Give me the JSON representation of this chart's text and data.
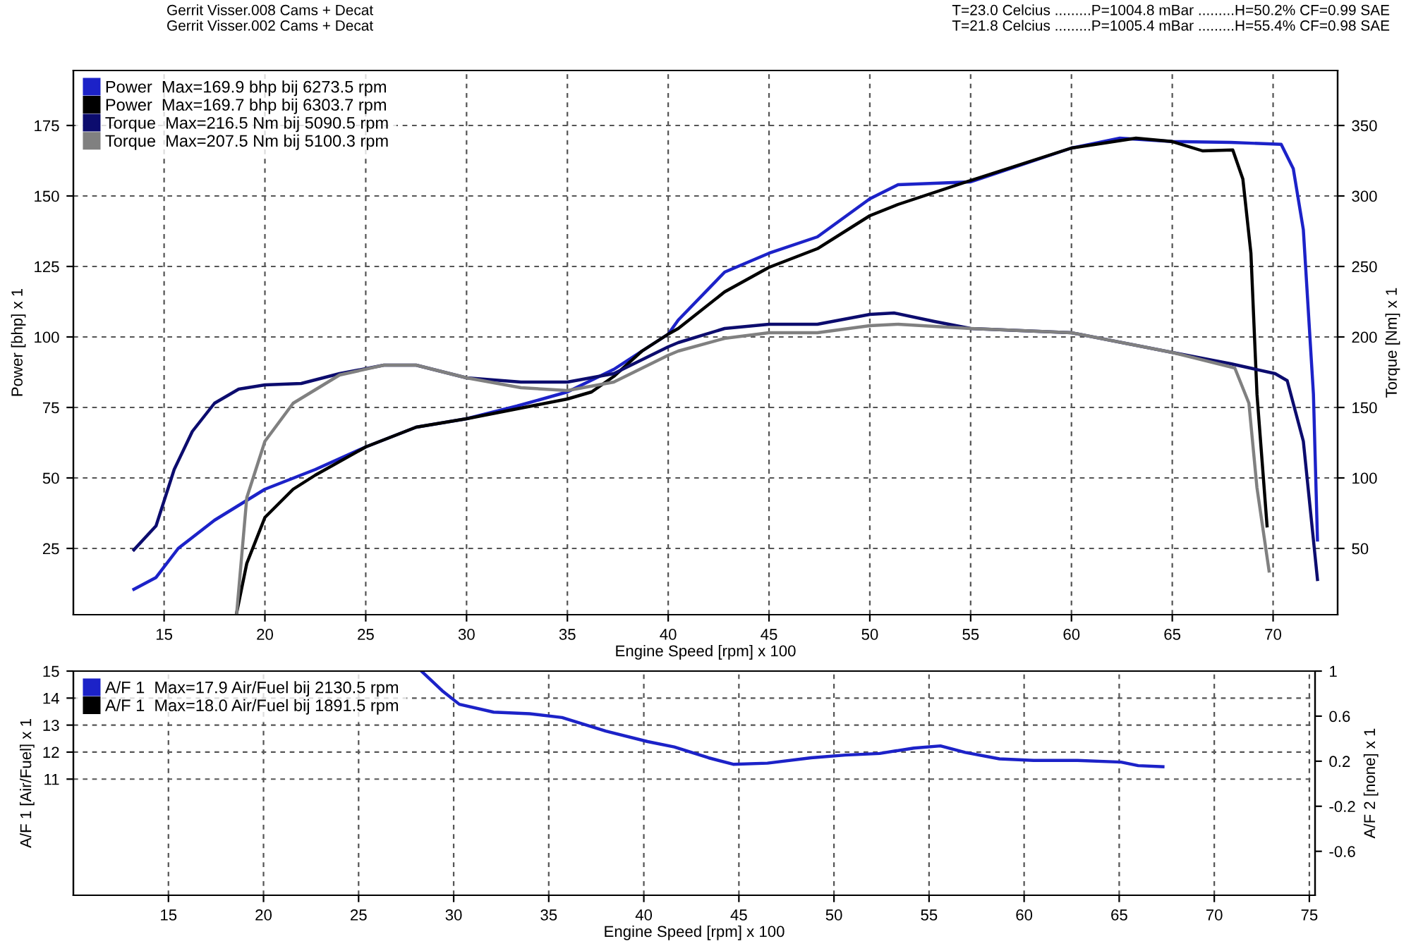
{
  "chart_data": [
    {
      "type": "line",
      "xlabel": "Engine Speed [rpm] x 100",
      "ylabel": "Power [bhp] x 1",
      "y2label": "Torque [Nm] x 1",
      "xlim": [
        10.5,
        73.2
      ],
      "xticks": [
        15,
        20,
        25,
        30,
        35,
        40,
        45,
        50,
        55,
        60,
        65,
        70
      ],
      "ylim": [
        1.5,
        194.5
      ],
      "yticks": [
        25,
        50,
        75,
        100,
        125,
        150,
        175
      ],
      "y2lim": [
        3,
        389
      ],
      "y2ticks": [
        50,
        100,
        150,
        200,
        250,
        300,
        350
      ],
      "grid": true,
      "legend": "top left",
      "annotations": [
        "Gerrit Visser.008 Cams + Decat",
        "Gerrit Visser.002 Cams + Decat",
        "T=23.0 Celcius .........P=1004.8 mBar .........H=50.2% CF=0.99 SAE",
        "T=21.8 Celcius .........P=1005.4 mBar .........H=55.4% CF=0.98 SAE"
      ],
      "series": [
        {
          "name": "Power  Max=169.9 bhp bij 6273.5 rpm",
          "color": "#1c22c8",
          "x": [
            13.5,
            14.6,
            15.7,
            17.5,
            20,
            22.5,
            25,
            27.5,
            30,
            32.5,
            35,
            37.3,
            40,
            40.5,
            42.8,
            45,
            47.4,
            50,
            51.4,
            55,
            60,
            62.4,
            65,
            67.9,
            70.4,
            71,
            71.5,
            72,
            72.2
          ],
          "values": [
            10.5,
            14.7,
            25,
            35,
            46,
            53,
            61,
            68,
            71,
            75.5,
            80.5,
            88.5,
            101,
            106,
            123,
            129.7,
            135.5,
            149,
            154,
            155,
            167,
            170.5,
            169.3,
            169,
            168.3,
            159.7,
            138,
            79.7,
            28
          ]
        },
        {
          "name": "Power  Max=169.7 bhp bij 6303.7 rpm",
          "color": "#000000",
          "x": [
            18.6,
            19.1,
            20,
            21.4,
            22.5,
            25,
            27.5,
            30,
            32.5,
            35,
            36.2,
            37.3,
            38.7,
            40,
            40.5,
            42.8,
            45,
            47.4,
            50,
            51.4,
            55,
            60,
            63.2,
            65,
            66.5,
            68,
            68.5,
            68.9,
            69.2,
            69.7
          ],
          "values": [
            2.2,
            19.7,
            36,
            46,
            51,
            61,
            68,
            71,
            74.5,
            78,
            80.5,
            86,
            95,
            101,
            103,
            116,
            124.7,
            131.3,
            143,
            147,
            155.5,
            167,
            170.5,
            169.3,
            166,
            166.3,
            156,
            129.7,
            79.7,
            33
          ]
        },
        {
          "name": "Torque  Max=216.5 Nm bij 5090.5 rpm",
          "color": "#0c0c6e",
          "axis": "y2",
          "x": [
            13.5,
            14.6,
            15.5,
            16.4,
            17.5,
            18.7,
            20,
            21.8,
            23.7,
            25.9,
            27.5,
            30,
            32.7,
            35,
            37.3,
            40,
            40.5,
            42.8,
            45,
            47.4,
            50,
            51.2,
            53.2,
            55,
            60,
            65,
            67.9,
            70.1,
            70.7,
            71.5,
            72.2
          ],
          "values": [
            49,
            66,
            106,
            133,
            153,
            163,
            166,
            167,
            174,
            180,
            180,
            171,
            168,
            168,
            174,
            193,
            196,
            206,
            209,
            209,
            216,
            217,
            211,
            206,
            203,
            189,
            181,
            174,
            169,
            126,
            28
          ]
        },
        {
          "name": "Torque  Max=207.5 Nm bij 5100.3 rpm",
          "color": "#808080",
          "axis": "y2",
          "x": [
            18.6,
            19.1,
            20,
            21.4,
            23.7,
            25.9,
            27.5,
            30,
            32.7,
            35,
            37.3,
            40,
            40.5,
            42.8,
            45,
            47.4,
            50,
            51.4,
            55,
            60,
            65,
            68.1,
            68.8,
            69.2,
            69.8
          ],
          "values": [
            4,
            86,
            126,
            153,
            173,
            180,
            180,
            171,
            164,
            162,
            168,
            187,
            190,
            199,
            203,
            203,
            208,
            209,
            206,
            203,
            189,
            178,
            153,
            93,
            34
          ]
        }
      ]
    },
    {
      "type": "line",
      "xlabel": "Engine Speed [rpm] x 100",
      "ylabel": "A/F 1 [Air/Fuel] x 1",
      "y2label": "A/F 2 [none] x 1",
      "xlim": [
        10,
        75.3
      ],
      "xticks": [
        15,
        20,
        25,
        30,
        35,
        40,
        45,
        50,
        55,
        60,
        65,
        70,
        75
      ],
      "ylim": [
        6.7,
        15
      ],
      "yticks": [
        11,
        12,
        13,
        14,
        15
      ],
      "y2lim": [
        -0.99,
        1
      ],
      "y2ticks": [
        -0.6,
        -0.2,
        0.2,
        0.6,
        1
      ],
      "grid": true,
      "legend": "top left",
      "series": [
        {
          "name": "A/F 1  Max=17.9 Air/Fuel bij 2130.5 rpm",
          "color": "#1c22c8",
          "x": [
            28.3,
            29.4,
            30.3,
            32.1,
            34,
            35.7,
            38,
            40.2,
            41.6,
            43.4,
            44.7,
            46.5,
            48.8,
            50.6,
            52.4,
            54.2,
            55.6,
            56.9,
            58.7,
            60.5,
            62.8,
            65.1,
            66,
            67.3
          ],
          "values": [
            15,
            14.27,
            13.77,
            13.48,
            13.42,
            13.28,
            12.78,
            12.39,
            12.19,
            11.79,
            11.55,
            11.59,
            11.79,
            11.89,
            11.95,
            12.15,
            12.23,
            11.99,
            11.75,
            11.69,
            11.69,
            11.63,
            11.5,
            11.46
          ]
        },
        {
          "name": "A/F 1  Max=18.0 Air/Fuel bij 1891.5 rpm",
          "color": "#000000"
        }
      ]
    }
  ]
}
